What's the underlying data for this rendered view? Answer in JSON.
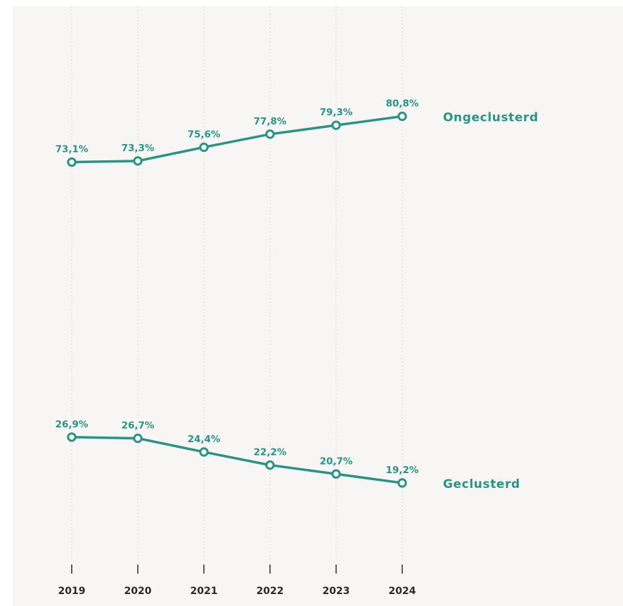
{
  "chart_data": {
    "type": "line",
    "x": [
      "2019",
      "2020",
      "2021",
      "2022",
      "2023",
      "2024"
    ],
    "ylim": [
      0,
      100
    ],
    "grid": "vertical dotted",
    "series": [
      {
        "name": "Ongeclusterd",
        "values": [
          73.1,
          73.3,
          75.6,
          77.8,
          79.3,
          80.8
        ],
        "labels": [
          "73,1%",
          "73,3%",
          "75,6%",
          "77,8%",
          "79,3%",
          "80,8%"
        ]
      },
      {
        "name": "Geclusterd",
        "values": [
          26.9,
          26.7,
          24.4,
          22.2,
          20.7,
          19.2
        ],
        "labels": [
          "26,9%",
          "26,7%",
          "24,4%",
          "22,2%",
          "20,7%",
          "19,2%"
        ]
      }
    ],
    "colors": {
      "series": "#2a9384",
      "text": "#2b2b2b",
      "background": "#f7f6f4"
    }
  }
}
